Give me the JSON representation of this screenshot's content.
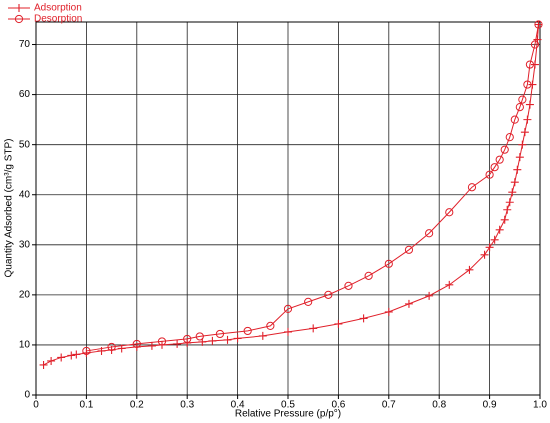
{
  "chart_data": {
    "type": "line",
    "x_label": "Relative Pressure (p/p°)",
    "y_label": "Quantity Adsorbed (cm³/g STP)",
    "xlim": [
      0,
      1
    ],
    "ylim": [
      0,
      74.5
    ],
    "xticks": [
      0,
      0.1,
      0.2,
      0.3,
      0.4,
      0.5,
      0.6,
      0.7,
      0.8,
      0.9,
      {
        "value": 1,
        "label": "1.0"
      }
    ],
    "yticks": [
      0,
      10,
      20,
      30,
      40,
      50,
      60,
      70
    ],
    "grid": true,
    "legend": "top-left",
    "series": [
      {
        "name": "Adsorption",
        "color": "#e0202a",
        "marker": "plus",
        "x": [
          0.015,
          0.03,
          0.05,
          0.07,
          0.08,
          0.1,
          0.13,
          0.15,
          0.17,
          0.2,
          0.23,
          0.25,
          0.28,
          0.3,
          0.33,
          0.35,
          0.38,
          0.4,
          0.45,
          0.5,
          0.55,
          0.6,
          0.65,
          0.7,
          0.74,
          0.78,
          0.82,
          0.86,
          0.89,
          0.9,
          0.91,
          0.92,
          0.93,
          0.935,
          0.94,
          0.945,
          0.95,
          0.955,
          0.96,
          0.965,
          0.97,
          0.975,
          0.98,
          0.985,
          0.99,
          0.995,
          0.997
        ],
        "values": [
          6.0,
          6.8,
          7.5,
          7.9,
          8.1,
          8.4,
          8.8,
          9.0,
          9.3,
          9.6,
          9.8,
          10.0,
          10.2,
          10.4,
          10.6,
          10.8,
          11.0,
          11.3,
          11.8,
          12.6,
          13.3,
          14.2,
          15.3,
          16.6,
          18.2,
          19.8,
          22.0,
          25.0,
          28.0,
          29.5,
          31.0,
          33.0,
          35.0,
          37.0,
          38.5,
          40.5,
          42.5,
          45.0,
          47.5,
          50.0,
          52.5,
          55.0,
          58.0,
          62.0,
          66.0,
          71.0,
          74.0
        ]
      },
      {
        "name": "Desorption",
        "color": "#e0202a",
        "marker": "circle",
        "x": [
          0.997,
          0.99,
          0.98,
          0.975,
          0.965,
          0.96,
          0.95,
          0.94,
          0.93,
          0.92,
          0.91,
          0.9,
          0.865,
          0.82,
          0.78,
          0.74,
          0.7,
          0.66,
          0.62,
          0.58,
          0.54,
          0.5,
          0.465,
          0.42,
          0.365,
          0.325,
          0.3,
          0.25,
          0.2,
          0.15,
          0.1
        ],
        "values": [
          74.0,
          70.0,
          66.0,
          62.0,
          59.0,
          57.5,
          55.0,
          51.5,
          49.0,
          47.0,
          45.5,
          44.0,
          41.5,
          36.5,
          32.3,
          29.0,
          26.2,
          23.8,
          21.8,
          20.0,
          18.6,
          17.2,
          13.8,
          12.8,
          12.2,
          11.7,
          11.2,
          10.7,
          10.2,
          9.6,
          8.8
        ]
      }
    ]
  }
}
